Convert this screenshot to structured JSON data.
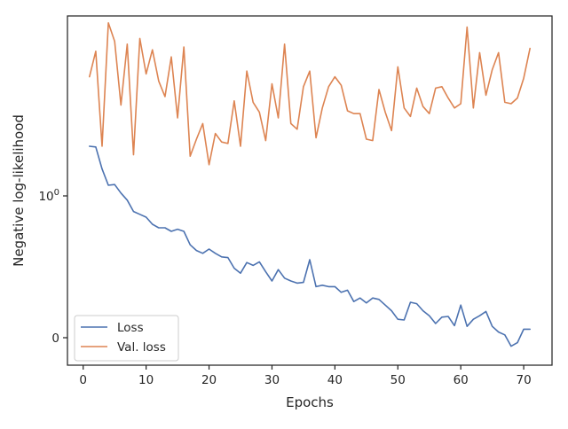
{
  "chart_data": {
    "type": "line",
    "title": "",
    "xlabel": "Epochs",
    "ylabel": "Negative log-likelihood",
    "xlim": [
      -2.5,
      74.5
    ],
    "xticks": [
      0,
      10,
      20,
      30,
      40,
      50,
      60,
      70
    ],
    "yticks": [
      {
        "value": 0,
        "label": "0"
      },
      {
        "value": 1,
        "label": "10",
        "sup": "0"
      }
    ],
    "grid": false,
    "legend": "lower-left",
    "series": [
      {
        "name": "Loss",
        "color": "#4c72b0",
        "x": [
          1,
          2,
          3,
          4,
          5,
          6,
          7,
          8,
          9,
          10,
          11,
          12,
          13,
          14,
          15,
          16,
          17,
          18,
          19,
          20,
          21,
          22,
          23,
          24,
          25,
          26,
          27,
          28,
          29,
          30,
          31,
          32,
          33,
          34,
          35,
          36,
          37,
          38,
          39,
          40,
          41,
          42,
          43,
          44,
          45,
          46,
          47,
          48,
          49,
          50,
          51,
          52,
          53,
          54,
          55,
          56,
          57,
          58,
          59,
          60,
          61,
          62,
          63,
          64,
          65,
          66,
          67,
          68,
          69,
          70,
          71
        ],
        "y": [
          1.35,
          1.345,
          1.19,
          1.075,
          1.08,
          1.02,
          0.97,
          0.89,
          0.87,
          0.85,
          0.8,
          0.775,
          0.775,
          0.75,
          0.765,
          0.75,
          0.655,
          0.615,
          0.595,
          0.625,
          0.595,
          0.57,
          0.565,
          0.49,
          0.455,
          0.53,
          0.51,
          0.535,
          0.465,
          0.4,
          0.48,
          0.42,
          0.4,
          0.385,
          0.39,
          0.55,
          0.36,
          0.37,
          0.36,
          0.36,
          0.32,
          0.335,
          0.255,
          0.28,
          0.245,
          0.28,
          0.27,
          0.23,
          0.19,
          0.13,
          0.125,
          0.25,
          0.24,
          0.19,
          0.155,
          0.1,
          0.145,
          0.15,
          0.085,
          0.23,
          0.08,
          0.13,
          0.155,
          0.185,
          0.08,
          0.04,
          0.02,
          -0.06,
          -0.035,
          0.06,
          0.06
        ]
      },
      {
        "name": "Val. loss",
        "color": "#dd8452",
        "x": [
          1,
          2,
          3,
          4,
          5,
          6,
          7,
          8,
          9,
          10,
          11,
          12,
          13,
          14,
          15,
          16,
          17,
          18,
          19,
          20,
          21,
          22,
          23,
          24,
          25,
          26,
          27,
          28,
          29,
          30,
          31,
          32,
          33,
          34,
          35,
          36,
          37,
          38,
          39,
          40,
          41,
          42,
          43,
          44,
          45,
          46,
          47,
          48,
          49,
          50,
          51,
          52,
          53,
          54,
          55,
          56,
          57,
          58,
          59,
          60,
          61,
          62,
          63,
          64,
          65,
          66,
          67,
          68,
          69,
          70,
          71
        ],
        "y": [
          1.84,
          2.02,
          1.35,
          2.22,
          2.09,
          1.64,
          2.07,
          1.29,
          2.11,
          1.86,
          2.03,
          1.81,
          1.7,
          1.98,
          1.55,
          2.05,
          1.28,
          1.4,
          1.51,
          1.22,
          1.44,
          1.38,
          1.37,
          1.67,
          1.35,
          1.88,
          1.66,
          1.59,
          1.39,
          1.79,
          1.55,
          2.07,
          1.51,
          1.47,
          1.77,
          1.88,
          1.41,
          1.62,
          1.77,
          1.84,
          1.78,
          1.6,
          1.58,
          1.58,
          1.4,
          1.39,
          1.75,
          1.59,
          1.46,
          1.91,
          1.62,
          1.56,
          1.76,
          1.63,
          1.58,
          1.76,
          1.77,
          1.69,
          1.62,
          1.65,
          2.19,
          1.62,
          2.01,
          1.71,
          1.89,
          2.01,
          1.66,
          1.65,
          1.69,
          1.83,
          2.04
        ]
      }
    ]
  }
}
